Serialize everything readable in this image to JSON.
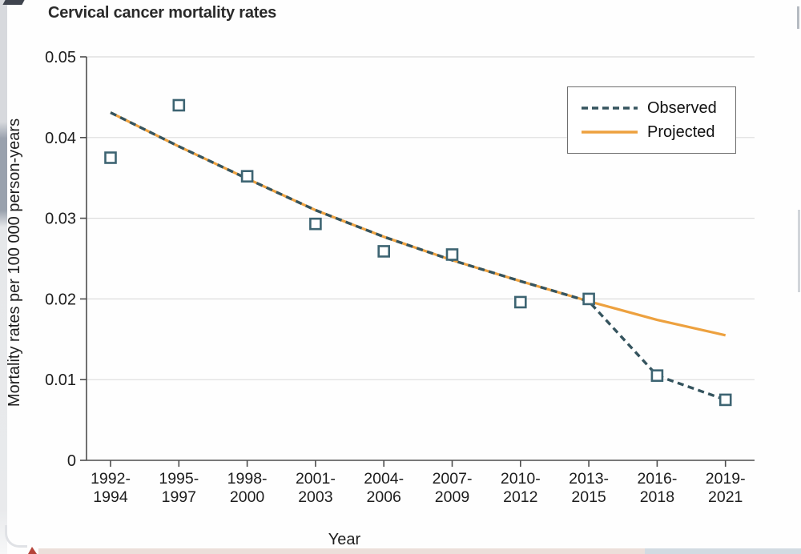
{
  "page": {
    "title": "Cervical cancer mortality rates"
  },
  "chart_data": {
    "type": "line",
    "title": "Cervical cancer mortality rates",
    "xlabel": "Year",
    "ylabel": "Mortality rates per 100 000 person-years",
    "ylim": [
      0,
      0.05
    ],
    "yticks": [
      0,
      0.01,
      0.02,
      0.03,
      0.04,
      0.05
    ],
    "ytick_labels": [
      "0",
      "0.01",
      "0.02",
      "0.03",
      "0.04",
      "0.05"
    ],
    "categories": [
      "1992-1994",
      "1995-1997",
      "1998-2000",
      "2001-2003",
      "2004-2006",
      "2007-2009",
      "2010-2012",
      "2013-2015",
      "2016-2018",
      "2019-2021"
    ],
    "grid": true,
    "series": [
      {
        "name": "Observed data points",
        "style": "open-square-markers",
        "values": [
          0.0375,
          0.044,
          0.0352,
          0.0293,
          0.0259,
          0.0255,
          0.0196,
          0.02,
          0.0105,
          0.0075
        ]
      },
      {
        "name": "Observed",
        "style": "dashed-line",
        "values": [
          0.0431,
          0.0389,
          0.0349,
          0.031,
          0.0277,
          0.0248,
          0.0222,
          0.0197,
          0.0105,
          0.0075
        ]
      },
      {
        "name": "Projected",
        "style": "solid-line",
        "values": [
          0.0431,
          0.0389,
          0.0349,
          0.031,
          0.0277,
          0.0248,
          0.0222,
          0.0197,
          0.0174,
          0.0155
        ]
      }
    ],
    "legend": {
      "position": "top-right",
      "entries": [
        {
          "label": "Observed",
          "style": "dashed",
          "color": "#35545e"
        },
        {
          "label": "Projected",
          "style": "solid",
          "color": "#eda13f"
        }
      ]
    },
    "colors": {
      "observed_line": "#35545e",
      "projected_line": "#eda13f",
      "marker_stroke": "#3d6472",
      "marker_fill": "#ffffff",
      "gridline": "#dcdcdc",
      "axis": "#4d4d4d",
      "text": "#1d1d1d"
    }
  }
}
